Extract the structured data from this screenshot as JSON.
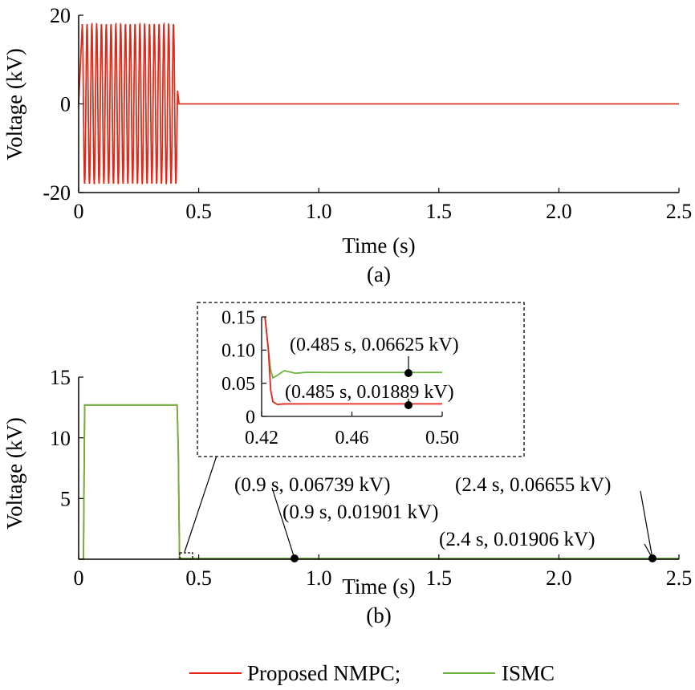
{
  "chart_data": [
    {
      "panel": "(a)",
      "type": "line",
      "xlabel": "Time (s)",
      "ylabel": "Voltage (kV)",
      "xlim": [
        0,
        2.5
      ],
      "ylim": [
        -20,
        20
      ],
      "xticks": [
        "0",
        "0.5",
        "1.0",
        "1.5",
        "2.0",
        "2.5"
      ],
      "yticks": [
        "-20",
        "0",
        "20"
      ],
      "series": [
        {
          "name": "Proposed NMPC",
          "color": "#e8231c",
          "description_points": [
            [
              0,
              0
            ],
            [
              0.02,
              18
            ],
            [
              0.41,
              -18
            ],
            [
              0.42,
              3
            ],
            [
              0.43,
              0
            ],
            [
              2.5,
              0
            ]
          ],
          "oscillation": {
            "t_start": 0.015,
            "t_end": 0.408,
            "amplitude": 18,
            "frequency_hz": 50
          }
        },
        {
          "name": "ISMC",
          "color": "#6db33f",
          "oscillation": {
            "t_start": 0.015,
            "t_end": 0.408,
            "amplitude": 18,
            "frequency_hz": 50
          }
        }
      ]
    },
    {
      "panel": "(b)",
      "type": "line",
      "xlabel": "Time (s)",
      "ylabel": "Voltage (kV)",
      "xlim": [
        0,
        2.5
      ],
      "ylim": [
        0,
        15
      ],
      "xticks": [
        "0",
        "0.5",
        "1.0",
        "1.5",
        "2.0",
        "2.5"
      ],
      "yticks": [
        "5",
        "10",
        "15"
      ],
      "series": [
        {
          "name": "Proposed NMPC",
          "color": "#e8231c",
          "x": [
            0,
            0.02,
            0.025,
            0.41,
            0.415,
            0.42,
            0.43,
            0.9,
            2.4,
            2.5
          ],
          "y": [
            0,
            0,
            12.7,
            12.7,
            9,
            0.15,
            0.019,
            0.01901,
            0.01906,
            0.019
          ]
        },
        {
          "name": "ISMC",
          "color": "#6db33f",
          "x": [
            0,
            0.02,
            0.025,
            0.41,
            0.415,
            0.42,
            0.43,
            0.9,
            2.4,
            2.5
          ],
          "y": [
            0,
            0,
            12.7,
            12.7,
            9,
            0.15,
            0.066,
            0.06739,
            0.06655,
            0.0665
          ]
        }
      ],
      "annotations": [
        "(0.9 s, 0.06739 kV)",
        "(0.9 s, 0.01901 kV)",
        "(2.4 s, 0.06655 kV)",
        "(2.4 s, 0.01906 kV)"
      ],
      "inset": {
        "xlim": [
          0.42,
          0.5
        ],
        "ylim": [
          0,
          0.15
        ],
        "xticks": [
          "0.42",
          "0.46",
          "0.50"
        ],
        "yticks": [
          "0",
          "0.05",
          "0.10",
          "0.15"
        ],
        "series": [
          {
            "name": "Proposed NMPC",
            "color": "#e8231c",
            "x": [
              0.4215,
              0.423,
              0.424,
              0.425,
              0.427,
              0.43,
              0.44,
              0.485,
              0.5
            ],
            "y": [
              0.15,
              0.1,
              0.04,
              0.022,
              0.018,
              0.0188,
              0.01889,
              0.01889,
              0.0189
            ]
          },
          {
            "name": "ISMC",
            "color": "#6db33f",
            "x": [
              0.4215,
              0.423,
              0.424,
              0.425,
              0.427,
              0.43,
              0.435,
              0.44,
              0.45,
              0.485,
              0.5
            ],
            "y": [
              0.15,
              0.1,
              0.07,
              0.058,
              0.062,
              0.069,
              0.065,
              0.0665,
              0.0662,
              0.06625,
              0.0663
            ]
          }
        ],
        "annotations": [
          "(0.485 s, 0.06625 kV)",
          "(0.485 s, 0.01889 kV)"
        ]
      }
    }
  ],
  "legend": {
    "items": [
      "Proposed NMPC;",
      "ISMC"
    ],
    "placement": "bottom-center"
  }
}
